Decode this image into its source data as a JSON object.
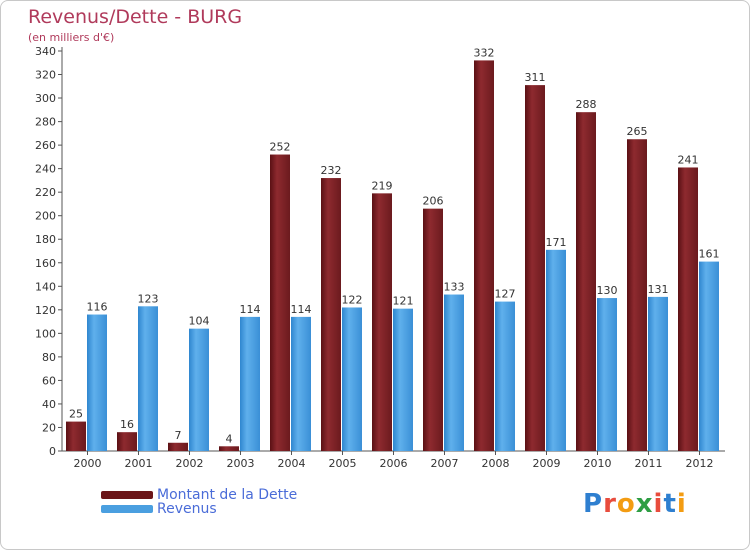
{
  "chart_data": {
    "type": "bar",
    "title": "Revenus/Dette - BURG",
    "subtitle": "(en milliers d'€)",
    "xlabel": "",
    "ylabel": "",
    "ylim": [
      0,
      340
    ],
    "ytick_step": 20,
    "categories": [
      "2000",
      "2001",
      "2002",
      "2003",
      "2004",
      "2005",
      "2006",
      "2007",
      "2008",
      "2009",
      "2010",
      "2011",
      "2012"
    ],
    "series": [
      {
        "name": "Montant de la Dette",
        "color": "#7b1e22",
        "values": [
          25,
          16,
          7,
          4,
          252,
          232,
          219,
          206,
          332,
          311,
          288,
          265,
          241
        ]
      },
      {
        "name": "Revenus",
        "color": "#4a9fe0",
        "values": [
          116,
          123,
          104,
          114,
          114,
          122,
          121,
          133,
          127,
          171,
          130,
          131,
          161
        ]
      }
    ],
    "legend_position": "bottom-left",
    "grid": false
  },
  "logo": {
    "letters": [
      {
        "char": "P",
        "color": "#2e7fd0"
      },
      {
        "char": "r",
        "color": "#e84c3d"
      },
      {
        "char": "o",
        "color": "#f39c12"
      },
      {
        "char": "x",
        "color": "#2e9e44"
      },
      {
        "char": "i",
        "color": "#e84c3d"
      },
      {
        "char": "t",
        "color": "#2e7fd0"
      },
      {
        "char": "i",
        "color": "#f39c12"
      }
    ]
  }
}
